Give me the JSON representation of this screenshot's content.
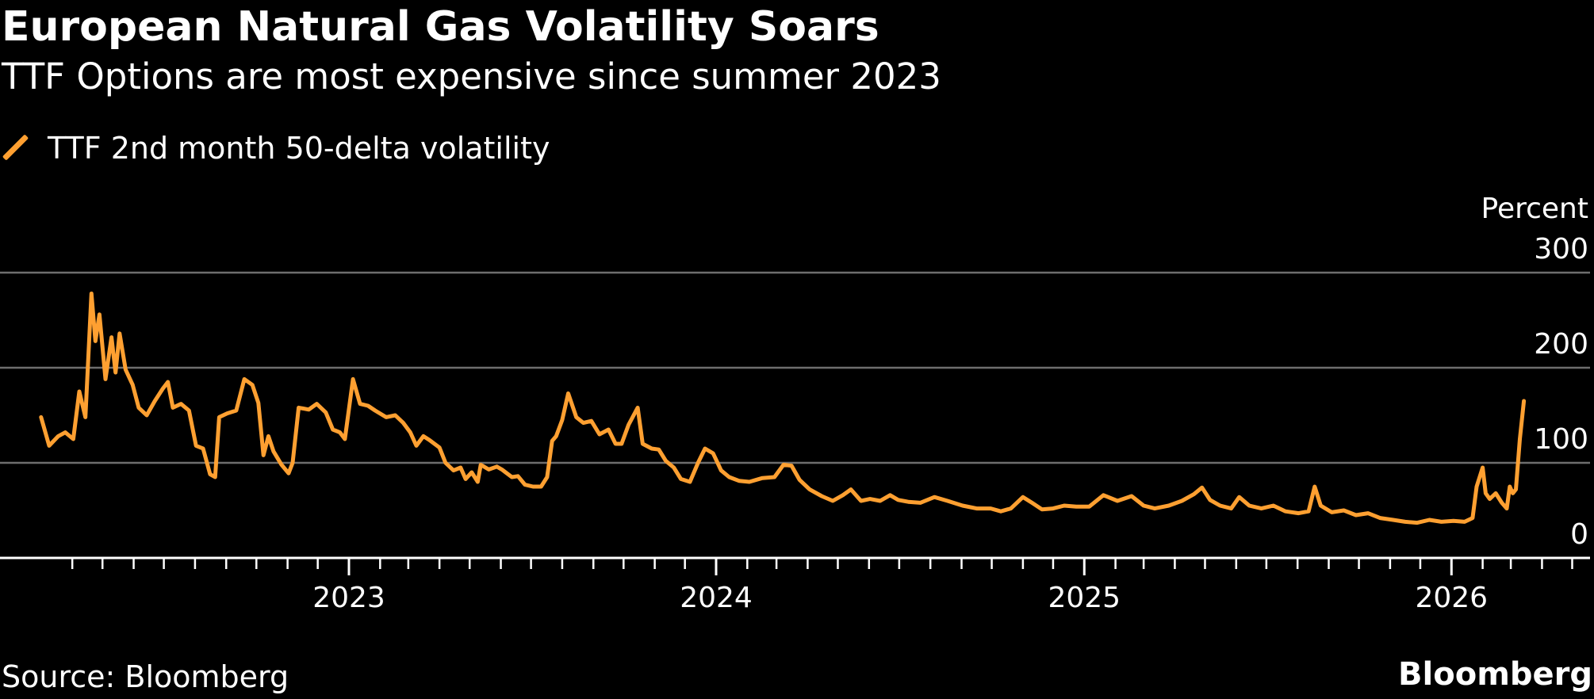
{
  "title": "European Natural Gas Volatility Soars",
  "subtitle": "TTF Options are most expensive since summer 2023",
  "source": "Source: Bloomberg",
  "brand": "Bloomberg",
  "colors": {
    "background": "#000000",
    "accent": "#FFA031",
    "grid": "#6e6e6e",
    "text": "#FFFFFF"
  },
  "chart_data": {
    "type": "line",
    "title": "European Natural Gas Volatility Soars",
    "subtitle": "TTF Options are most expensive since summer 2023",
    "ylabel": "Percent",
    "ylim": [
      0,
      300
    ],
    "yticks": [
      0,
      100,
      200,
      300
    ],
    "xticks": [
      "2023",
      "2024",
      "2025",
      "2026"
    ],
    "xlim": [
      "2022-03-01",
      "2026-06-30"
    ],
    "grid": "horizontal",
    "legend_position": "top-left",
    "series": [
      {
        "name": "TTF 2nd month 50-delta volatility",
        "color": "#FFA031",
        "points": [
          [
            "2022-03-01",
            148
          ],
          [
            "2022-03-09",
            118
          ],
          [
            "2022-03-18",
            128
          ],
          [
            "2022-03-25",
            132
          ],
          [
            "2022-04-02",
            125
          ],
          [
            "2022-04-08",
            175
          ],
          [
            "2022-04-14",
            148
          ],
          [
            "2022-04-20",
            278
          ],
          [
            "2022-04-24",
            228
          ],
          [
            "2022-04-28",
            256
          ],
          [
            "2022-05-04",
            188
          ],
          [
            "2022-05-10",
            232
          ],
          [
            "2022-05-14",
            195
          ],
          [
            "2022-05-18",
            236
          ],
          [
            "2022-05-24",
            198
          ],
          [
            "2022-05-31",
            182
          ],
          [
            "2022-06-06",
            158
          ],
          [
            "2022-06-14",
            150
          ],
          [
            "2022-06-22",
            165
          ],
          [
            "2022-06-30",
            178
          ],
          [
            "2022-07-05",
            185
          ],
          [
            "2022-07-10",
            158
          ],
          [
            "2022-07-18",
            162
          ],
          [
            "2022-07-26",
            155
          ],
          [
            "2022-08-02",
            118
          ],
          [
            "2022-08-09",
            115
          ],
          [
            "2022-08-16",
            88
          ],
          [
            "2022-08-21",
            85
          ],
          [
            "2022-08-25",
            148
          ],
          [
            "2022-09-02",
            152
          ],
          [
            "2022-09-11",
            155
          ],
          [
            "2022-09-19",
            188
          ],
          [
            "2022-09-27",
            182
          ],
          [
            "2022-10-03",
            163
          ],
          [
            "2022-10-08",
            108
          ],
          [
            "2022-10-13",
            128
          ],
          [
            "2022-10-18",
            112
          ],
          [
            "2022-10-26",
            98
          ],
          [
            "2022-11-02",
            89
          ],
          [
            "2022-11-06",
            100
          ],
          [
            "2022-11-12",
            158
          ],
          [
            "2022-11-22",
            156
          ],
          [
            "2022-11-30",
            162
          ],
          [
            "2022-12-09",
            153
          ],
          [
            "2022-12-16",
            135
          ],
          [
            "2022-12-23",
            132
          ],
          [
            "2022-12-28",
            125
          ],
          [
            "2023-01-05",
            188
          ],
          [
            "2023-01-12",
            162
          ],
          [
            "2023-01-20",
            160
          ],
          [
            "2023-01-27",
            155
          ],
          [
            "2023-02-07",
            148
          ],
          [
            "2023-02-16",
            150
          ],
          [
            "2023-02-24",
            142
          ],
          [
            "2023-03-03",
            132
          ],
          [
            "2023-03-09",
            118
          ],
          [
            "2023-03-16",
            128
          ],
          [
            "2023-03-22",
            124
          ],
          [
            "2023-04-01",
            116
          ],
          [
            "2023-04-07",
            100
          ],
          [
            "2023-04-15",
            92
          ],
          [
            "2023-04-22",
            95
          ],
          [
            "2023-04-27",
            83
          ],
          [
            "2023-05-03",
            90
          ],
          [
            "2023-05-09",
            80
          ],
          [
            "2023-05-12",
            98
          ],
          [
            "2023-05-20",
            93
          ],
          [
            "2023-05-28",
            96
          ],
          [
            "2023-06-02",
            93
          ],
          [
            "2023-06-12",
            85
          ],
          [
            "2023-06-18",
            86
          ],
          [
            "2023-06-25",
            77
          ],
          [
            "2023-07-03",
            75
          ],
          [
            "2023-07-11",
            75
          ],
          [
            "2023-07-17",
            85
          ],
          [
            "2023-07-22",
            123
          ],
          [
            "2023-07-26",
            128
          ],
          [
            "2023-08-01",
            145
          ],
          [
            "2023-08-07",
            173
          ],
          [
            "2023-08-15",
            148
          ],
          [
            "2023-08-22",
            142
          ],
          [
            "2023-08-30",
            144
          ],
          [
            "2023-09-07",
            130
          ],
          [
            "2023-09-16",
            135
          ],
          [
            "2023-09-23",
            120
          ],
          [
            "2023-09-29",
            120
          ],
          [
            "2023-10-06",
            140
          ],
          [
            "2023-10-15",
            158
          ],
          [
            "2023-10-20",
            120
          ],
          [
            "2023-10-29",
            115
          ],
          [
            "2023-11-05",
            114
          ],
          [
            "2023-11-12",
            102
          ],
          [
            "2023-11-20",
            95
          ],
          [
            "2023-11-27",
            83
          ],
          [
            "2023-12-06",
            80
          ],
          [
            "2023-12-14",
            100
          ],
          [
            "2023-12-21",
            115
          ],
          [
            "2023-12-29",
            110
          ],
          [
            "2024-01-06",
            92
          ],
          [
            "2024-01-14",
            85
          ],
          [
            "2024-01-24",
            81
          ],
          [
            "2024-02-03",
            80
          ],
          [
            "2024-02-16",
            84
          ],
          [
            "2024-02-28",
            85
          ],
          [
            "2024-03-08",
            98
          ],
          [
            "2024-03-16",
            97
          ],
          [
            "2024-03-24",
            82
          ],
          [
            "2024-04-03",
            72
          ],
          [
            "2024-04-15",
            65
          ],
          [
            "2024-04-26",
            60
          ],
          [
            "2024-05-06",
            66
          ],
          [
            "2024-05-14",
            72
          ],
          [
            "2024-05-24",
            60
          ],
          [
            "2024-06-02",
            62
          ],
          [
            "2024-06-12",
            60
          ],
          [
            "2024-06-22",
            66
          ],
          [
            "2024-06-30",
            61
          ],
          [
            "2024-07-10",
            59
          ],
          [
            "2024-07-22",
            58
          ],
          [
            "2024-08-05",
            64
          ],
          [
            "2024-08-18",
            60
          ],
          [
            "2024-09-02",
            55
          ],
          [
            "2024-09-16",
            52
          ],
          [
            "2024-09-30",
            52
          ],
          [
            "2024-10-10",
            49
          ],
          [
            "2024-10-20",
            52
          ],
          [
            "2024-11-01",
            64
          ],
          [
            "2024-11-10",
            58
          ],
          [
            "2024-11-20",
            51
          ],
          [
            "2024-12-01",
            52
          ],
          [
            "2024-12-12",
            55
          ],
          [
            "2024-12-24",
            54
          ],
          [
            "2025-01-06",
            54
          ],
          [
            "2025-01-20",
            66
          ],
          [
            "2025-02-03",
            60
          ],
          [
            "2025-02-17",
            65
          ],
          [
            "2025-03-01",
            55
          ],
          [
            "2025-03-12",
            52
          ],
          [
            "2025-03-26",
            55
          ],
          [
            "2025-04-08",
            60
          ],
          [
            "2025-04-20",
            67
          ],
          [
            "2025-04-28",
            74
          ],
          [
            "2025-05-06",
            61
          ],
          [
            "2025-05-16",
            55
          ],
          [
            "2025-05-27",
            52
          ],
          [
            "2025-06-04",
            64
          ],
          [
            "2025-06-14",
            55
          ],
          [
            "2025-06-26",
            52
          ],
          [
            "2025-07-08",
            55
          ],
          [
            "2025-07-20",
            49
          ],
          [
            "2025-08-02",
            47
          ],
          [
            "2025-08-12",
            49
          ],
          [
            "2025-08-18",
            75
          ],
          [
            "2025-08-24",
            55
          ],
          [
            "2025-09-04",
            48
          ],
          [
            "2025-09-16",
            50
          ],
          [
            "2025-09-28",
            45
          ],
          [
            "2025-10-10",
            47
          ],
          [
            "2025-10-22",
            42
          ],
          [
            "2025-11-04",
            40
          ],
          [
            "2025-11-16",
            38
          ],
          [
            "2025-11-28",
            37
          ],
          [
            "2025-12-10",
            40
          ],
          [
            "2025-12-22",
            38
          ],
          [
            "2026-01-03",
            39
          ],
          [
            "2026-01-14",
            38
          ],
          [
            "2026-01-22",
            42
          ],
          [
            "2026-01-26",
            75
          ],
          [
            "2026-02-01",
            95
          ],
          [
            "2026-02-04",
            68
          ],
          [
            "2026-02-08",
            62
          ],
          [
            "2026-02-14",
            68
          ],
          [
            "2026-02-20",
            58
          ],
          [
            "2026-02-25",
            52
          ],
          [
            "2026-02-28",
            75
          ],
          [
            "2026-03-03",
            68
          ],
          [
            "2026-03-06",
            72
          ],
          [
            "2026-03-10",
            125
          ],
          [
            "2026-03-14",
            165
          ]
        ]
      }
    ]
  }
}
